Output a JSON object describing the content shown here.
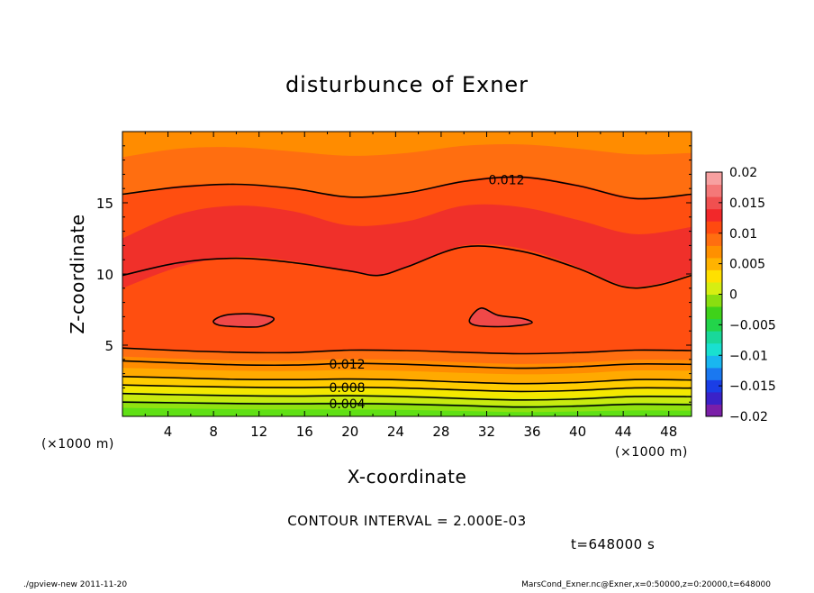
{
  "chart_data": {
    "type": "contour",
    "title": "disturbunce of Exner",
    "xlabel": "X-coordinate",
    "ylabel": "Z-coordinate",
    "x_unit": "(×1000 m)",
    "y_unit": "(×1000 m)",
    "xlim": [
      0,
      50
    ],
    "ylim": [
      0,
      20
    ],
    "x_ticks": [
      4,
      8,
      12,
      16,
      20,
      24,
      28,
      32,
      36,
      40,
      44,
      48
    ],
    "y_ticks": [
      5,
      10,
      15
    ],
    "contour_interval_text": "CONTOUR INTERVAL = 2.000E-03",
    "time_text": "t=648000 s",
    "colorbar": {
      "min": -0.02,
      "max": 0.02,
      "ticks": [
        {
          "value": 0.02,
          "label": "0.02"
        },
        {
          "value": 0.015,
          "label": "0.015"
        },
        {
          "value": 0.01,
          "label": "0.01"
        },
        {
          "value": 0.005,
          "label": "0.005"
        },
        {
          "value": 0,
          "label": "0"
        },
        {
          "value": -0.005,
          "label": "−0.005"
        },
        {
          "value": -0.01,
          "label": "−0.01"
        },
        {
          "value": -0.015,
          "label": "−0.015"
        },
        {
          "value": -0.02,
          "label": "−0.02"
        }
      ],
      "colors": [
        "#7a1fa8",
        "#3a22c8",
        "#1a3ee6",
        "#1a78f0",
        "#19b6f0",
        "#19e0d0",
        "#19d89a",
        "#22d44a",
        "#3fd21a",
        "#8ade10",
        "#d6ee12",
        "#ffe000",
        "#ffb300",
        "#ff9000",
        "#ff6e10",
        "#ff4a10",
        "#f2282a",
        "#f05050",
        "#f47878",
        "#f7a0a0"
      ]
    },
    "fill_layers": [
      {
        "value": 0.0,
        "color": "#60e015",
        "top": [
          [
            0,
            0.6
          ],
          [
            5,
            0.55
          ],
          [
            10,
            0.5
          ],
          [
            15,
            0.48
          ],
          [
            20,
            0.48
          ],
          [
            25,
            0.45
          ],
          [
            30,
            0.38
          ],
          [
            35,
            0.3
          ],
          [
            40,
            0.34
          ],
          [
            45,
            0.42
          ],
          [
            50,
            0.4
          ]
        ]
      },
      {
        "value": 0.002,
        "color": "#90e210",
        "top": [
          [
            0,
            1.1
          ],
          [
            5,
            1.05
          ],
          [
            10,
            1.0
          ],
          [
            15,
            0.98
          ],
          [
            20,
            1.0
          ],
          [
            25,
            0.95
          ],
          [
            30,
            0.85
          ],
          [
            35,
            0.75
          ],
          [
            40,
            0.82
          ],
          [
            45,
            0.95
          ],
          [
            50,
            0.92
          ]
        ]
      },
      {
        "value": 0.004,
        "color": "#c8ea10",
        "top": [
          [
            0,
            1.7
          ],
          [
            5,
            1.62
          ],
          [
            10,
            1.55
          ],
          [
            15,
            1.52
          ],
          [
            20,
            1.55
          ],
          [
            25,
            1.48
          ],
          [
            30,
            1.35
          ],
          [
            35,
            1.25
          ],
          [
            40,
            1.32
          ],
          [
            45,
            1.5
          ],
          [
            50,
            1.48
          ]
        ]
      },
      {
        "value": 0.006,
        "color": "#f4e800",
        "top": [
          [
            0,
            2.2
          ],
          [
            5,
            2.12
          ],
          [
            10,
            2.05
          ],
          [
            15,
            2.02
          ],
          [
            20,
            2.05
          ],
          [
            25,
            1.98
          ],
          [
            30,
            1.85
          ],
          [
            35,
            1.75
          ],
          [
            40,
            1.82
          ],
          [
            45,
            2.0
          ],
          [
            50,
            1.98
          ]
        ]
      },
      {
        "value": 0.008,
        "color": "#ffcc00",
        "top": [
          [
            0,
            2.8
          ],
          [
            5,
            2.7
          ],
          [
            10,
            2.6
          ],
          [
            15,
            2.58
          ],
          [
            20,
            2.62
          ],
          [
            25,
            2.55
          ],
          [
            30,
            2.4
          ],
          [
            35,
            2.3
          ],
          [
            40,
            2.38
          ],
          [
            45,
            2.58
          ],
          [
            50,
            2.55
          ]
        ]
      },
      {
        "value": 0.01,
        "color": "#ffaa00",
        "top": [
          [
            0,
            3.4
          ],
          [
            5,
            3.3
          ],
          [
            10,
            3.2
          ],
          [
            15,
            3.18
          ],
          [
            20,
            3.25
          ],
          [
            25,
            3.18
          ],
          [
            30,
            3.05
          ],
          [
            35,
            2.95
          ],
          [
            40,
            3.02
          ],
          [
            45,
            3.22
          ],
          [
            50,
            3.2
          ]
        ]
      },
      {
        "value": 0.012,
        "color": "#ff8c00",
        "top": [
          [
            0,
            4.2
          ],
          [
            5,
            4.05
          ],
          [
            10,
            3.92
          ],
          [
            15,
            3.9
          ],
          [
            20,
            4.02
          ],
          [
            25,
            3.95
          ],
          [
            30,
            3.8
          ],
          [
            35,
            3.68
          ],
          [
            40,
            3.78
          ],
          [
            45,
            3.98
          ],
          [
            50,
            3.95
          ]
        ]
      },
      {
        "value": 0.014,
        "color": "#ff6e10",
        "top": [
          [
            0,
            4.8
          ],
          [
            5,
            4.62
          ],
          [
            10,
            4.5
          ],
          [
            15,
            4.48
          ],
          [
            20,
            4.65
          ],
          [
            25,
            4.62
          ],
          [
            30,
            4.5
          ],
          [
            35,
            4.4
          ],
          [
            40,
            4.48
          ],
          [
            45,
            4.65
          ],
          [
            50,
            4.62
          ]
        ]
      },
      {
        "value": 0.016,
        "color": "#ff4e10",
        "top": [
          [
            0,
            9.0
          ],
          [
            5,
            10.5
          ],
          [
            10,
            11.2
          ],
          [
            15,
            10.9
          ],
          [
            20,
            10.2
          ],
          [
            22.5,
            9.9
          ],
          [
            25,
            10.5
          ],
          [
            30,
            12.0
          ],
          [
            35,
            11.8
          ],
          [
            40,
            10.5
          ],
          [
            44,
            9.2
          ],
          [
            47,
            9.3
          ],
          [
            50,
            10.0
          ]
        ]
      },
      {
        "value": 0.014,
        "color": "#f0302a",
        "top": [
          [
            0,
            12.5
          ],
          [
            5,
            14.2
          ],
          [
            10,
            14.8
          ],
          [
            15,
            14.4
          ],
          [
            20,
            13.4
          ],
          [
            25,
            13.7
          ],
          [
            30,
            14.8
          ],
          [
            35,
            14.7
          ],
          [
            40,
            13.8
          ],
          [
            45,
            12.8
          ],
          [
            50,
            13.3
          ]
        ]
      },
      {
        "value": 0.012,
        "color": "#ff4e10",
        "top": [
          [
            0,
            15.5
          ],
          [
            5,
            16.2
          ],
          [
            10,
            16.3
          ],
          [
            15,
            16.0
          ],
          [
            20,
            15.4
          ],
          [
            25,
            15.7
          ],
          [
            30,
            16.6
          ],
          [
            35,
            16.9
          ],
          [
            40,
            16.3
          ],
          [
            45,
            15.4
          ],
          [
            50,
            15.6
          ]
        ]
      },
      {
        "value": 0.01,
        "color": "#ff6e10",
        "top": [
          [
            0,
            18.2
          ],
          [
            5,
            18.8
          ],
          [
            10,
            18.9
          ],
          [
            15,
            18.6
          ],
          [
            20,
            18.3
          ],
          [
            25,
            18.5
          ],
          [
            30,
            19.0
          ],
          [
            35,
            19.1
          ],
          [
            40,
            18.8
          ],
          [
            45,
            18.4
          ],
          [
            50,
            18.5
          ]
        ]
      },
      {
        "value": 0.008,
        "color": "#ff8c00",
        "top": [
          [
            0,
            20
          ],
          [
            50,
            20
          ]
        ]
      }
    ],
    "contour_lines": [
      {
        "level": 0.004,
        "label": "0.004",
        "label_x": 18.0,
        "points": [
          [
            0,
            1.0
          ],
          [
            5,
            0.95
          ],
          [
            10,
            0.9
          ],
          [
            15,
            0.88
          ],
          [
            20,
            0.9
          ],
          [
            25,
            0.85
          ],
          [
            30,
            0.75
          ],
          [
            35,
            0.65
          ],
          [
            40,
            0.72
          ],
          [
            45,
            0.85
          ],
          [
            50,
            0.82
          ]
        ]
      },
      {
        "level": 0.006,
        "label": "",
        "label_x": null,
        "points": [
          [
            0,
            1.6
          ],
          [
            5,
            1.52
          ],
          [
            10,
            1.45
          ],
          [
            15,
            1.42
          ],
          [
            20,
            1.45
          ],
          [
            25,
            1.38
          ],
          [
            30,
            1.25
          ],
          [
            35,
            1.15
          ],
          [
            40,
            1.22
          ],
          [
            45,
            1.4
          ],
          [
            50,
            1.38
          ]
        ]
      },
      {
        "level": 0.008,
        "label": "0.008",
        "label_x": 18.0,
        "points": [
          [
            0,
            2.2
          ],
          [
            5,
            2.12
          ],
          [
            10,
            2.05
          ],
          [
            15,
            2.02
          ],
          [
            20,
            2.05
          ],
          [
            25,
            1.98
          ],
          [
            30,
            1.85
          ],
          [
            35,
            1.75
          ],
          [
            40,
            1.82
          ],
          [
            45,
            2.0
          ],
          [
            50,
            1.98
          ]
        ]
      },
      {
        "level": 0.01,
        "label": "",
        "label_x": null,
        "points": [
          [
            0,
            2.8
          ],
          [
            5,
            2.7
          ],
          [
            10,
            2.6
          ],
          [
            15,
            2.58
          ],
          [
            20,
            2.62
          ],
          [
            25,
            2.55
          ],
          [
            30,
            2.4
          ],
          [
            35,
            2.3
          ],
          [
            40,
            2.38
          ],
          [
            45,
            2.58
          ],
          [
            50,
            2.55
          ]
        ]
      },
      {
        "level": 0.012,
        "label": "0.012",
        "label_x": 18.0,
        "points": [
          [
            0,
            3.9
          ],
          [
            5,
            3.75
          ],
          [
            10,
            3.62
          ],
          [
            15,
            3.6
          ],
          [
            20,
            3.72
          ],
          [
            25,
            3.65
          ],
          [
            30,
            3.5
          ],
          [
            35,
            3.38
          ],
          [
            40,
            3.48
          ],
          [
            45,
            3.68
          ],
          [
            50,
            3.65
          ]
        ]
      },
      {
        "level": 0.014,
        "label": "",
        "label_x": null,
        "points": [
          [
            0,
            4.8
          ],
          [
            5,
            4.62
          ],
          [
            10,
            4.5
          ],
          [
            15,
            4.48
          ],
          [
            20,
            4.65
          ],
          [
            25,
            4.62
          ],
          [
            30,
            4.5
          ],
          [
            35,
            4.4
          ],
          [
            40,
            4.48
          ],
          [
            45,
            4.65
          ],
          [
            50,
            4.62
          ]
        ]
      },
      {
        "level": 0.014,
        "label": "",
        "label_x": null,
        "points": [
          [
            0,
            9.9
          ],
          [
            5,
            10.8
          ],
          [
            10,
            11.1
          ],
          [
            15,
            10.8
          ],
          [
            20,
            10.2
          ],
          [
            22.5,
            9.9
          ],
          [
            25,
            10.5
          ],
          [
            30,
            11.9
          ],
          [
            35,
            11.6
          ],
          [
            40,
            10.4
          ],
          [
            44,
            9.1
          ],
          [
            47,
            9.2
          ],
          [
            50,
            9.9
          ]
        ]
      },
      {
        "level": 0.012,
        "label": "0.012",
        "label_x": 32.0,
        "points": [
          [
            0,
            15.6
          ],
          [
            5,
            16.1
          ],
          [
            10,
            16.3
          ],
          [
            15,
            16.0
          ],
          [
            20,
            15.4
          ],
          [
            25,
            15.7
          ],
          [
            30,
            16.5
          ],
          [
            35,
            16.8
          ],
          [
            40,
            16.2
          ],
          [
            45,
            15.3
          ],
          [
            50,
            15.6
          ]
        ]
      },
      {
        "level": 0.016,
        "label": "",
        "label_x": null,
        "closed": true,
        "points": [
          [
            8,
            6.7
          ],
          [
            9,
            7.1
          ],
          [
            11,
            7.2
          ],
          [
            13,
            7.0
          ],
          [
            13.2,
            6.7
          ],
          [
            12,
            6.3
          ],
          [
            10,
            6.3
          ],
          [
            8.5,
            6.4
          ]
        ]
      },
      {
        "level": 0.016,
        "label": "",
        "label_x": null,
        "closed": true,
        "points": [
          [
            30.5,
            6.8
          ],
          [
            31.5,
            7.6
          ],
          [
            33,
            7.1
          ],
          [
            35,
            6.9
          ],
          [
            36,
            6.6
          ],
          [
            35,
            6.4
          ],
          [
            33,
            6.3
          ],
          [
            31,
            6.4
          ]
        ]
      }
    ]
  },
  "footer": {
    "left": "./gpview-new   2011-11-20",
    "right": "MarsCond_Exner.nc@Exner,x=0:50000,z=0:20000,t=648000"
  }
}
